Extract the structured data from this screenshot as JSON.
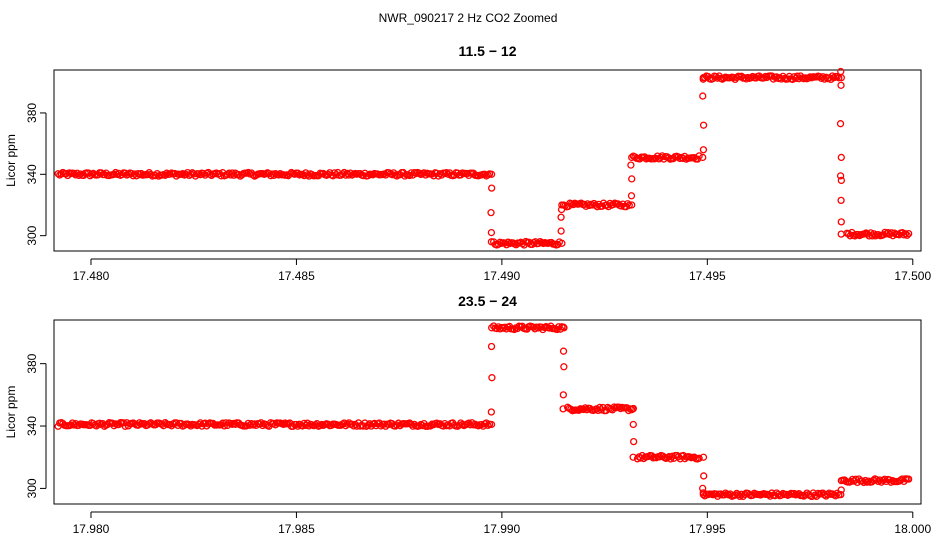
{
  "figure": {
    "title": "NWR_090217  2 Hz CO2 Zoomed"
  },
  "chart_data": [
    {
      "type": "scatter",
      "title": "11.5 − 12",
      "xlabel": "",
      "ylabel": "Licor ppm",
      "xlim": [
        17.4791,
        17.5002
      ],
      "ylim": [
        290,
        408
      ],
      "xticks": [
        17.48,
        17.485,
        17.49,
        17.495,
        17.5
      ],
      "xtick_labels": [
        "17.480",
        "17.485",
        "17.490",
        "17.495",
        "17.500"
      ],
      "yticks": [
        300,
        340,
        380
      ],
      "ytick_labels": [
        "300",
        "340",
        "380"
      ],
      "color": "#ff0000",
      "segments": [
        {
          "x": [
            17.4792,
            17.4897
          ],
          "y": 340
        },
        {
          "x": [
            17.4898,
            17.4914
          ],
          "y": 295
        },
        {
          "x": [
            17.4915,
            17.4931
          ],
          "y": 320
        },
        {
          "x": [
            17.4932,
            17.4948
          ],
          "y": 351
        },
        {
          "x": [
            17.4949,
            17.4982
          ],
          "y": 403
        },
        {
          "x": [
            17.4984,
            17.4999
          ],
          "y": 301
        }
      ],
      "transitions": [
        {
          "x": 17.48975,
          "y": [
            340,
            331,
            315,
            302,
            296
          ]
        },
        {
          "x": 17.49145,
          "y": [
            295,
            303,
            312,
            317,
            320
          ]
        },
        {
          "x": 17.49315,
          "y": [
            320,
            326,
            337,
            346,
            351
          ]
        },
        {
          "x": 17.4949,
          "y": [
            351,
            356,
            372,
            391,
            403
          ]
        },
        {
          "x": 17.49825,
          "y": [
            407,
            403,
            398,
            373,
            351,
            339,
            336,
            323,
            309,
            301
          ]
        }
      ]
    },
    {
      "type": "scatter",
      "title": "23.5 − 24",
      "xlabel": "",
      "ylabel": "Licor ppm",
      "xlim": [
        17.9791,
        18.0002
      ],
      "ylim": [
        290,
        408
      ],
      "xticks": [
        17.98,
        17.985,
        17.99,
        17.995,
        18.0
      ],
      "xtick_labels": [
        "17.980",
        "17.985",
        "17.990",
        "17.995",
        "18.000"
      ],
      "yticks": [
        300,
        340,
        380
      ],
      "ytick_labels": [
        "300",
        "340",
        "380"
      ],
      "color": "#ff0000",
      "segments": [
        {
          "x": [
            17.9792,
            17.9897
          ],
          "y": 341
        },
        {
          "x": [
            17.9898,
            17.9915
          ],
          "y": 403
        },
        {
          "x": [
            17.9916,
            17.9932
          ],
          "y": 351
        },
        {
          "x": [
            17.9933,
            17.9948
          ],
          "y": 320
        },
        {
          "x": [
            17.9949,
            17.9982
          ],
          "y": 296
        },
        {
          "x": [
            17.9983,
            17.9999
          ],
          "y": 305
        }
      ],
      "transitions": [
        {
          "x": 17.98975,
          "y": [
            341,
            349,
            371,
            391,
            403
          ]
        },
        {
          "x": 17.9915,
          "y": [
            403,
            388,
            378,
            360,
            351
          ]
        },
        {
          "x": 17.9932,
          "y": [
            351,
            341,
            330,
            320
          ]
        },
        {
          "x": 17.9949,
          "y": [
            320,
            308,
            300,
            296
          ]
        },
        {
          "x": 17.99825,
          "y": [
            296,
            299,
            305
          ]
        }
      ]
    }
  ]
}
